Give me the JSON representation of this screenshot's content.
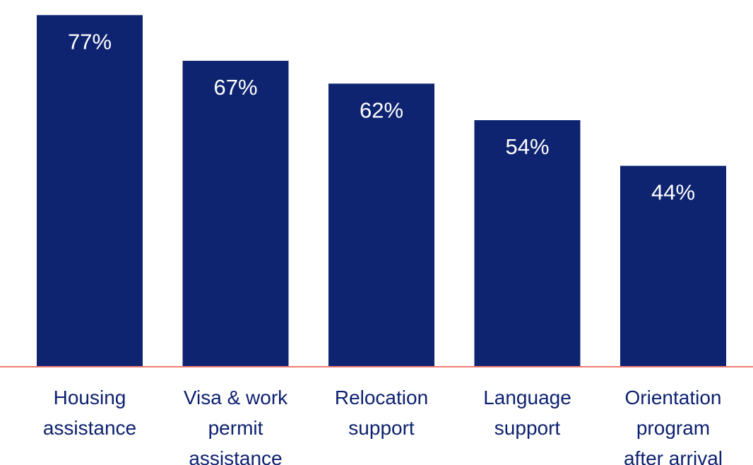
{
  "chart_data": {
    "type": "bar",
    "categories": [
      [
        "Housing",
        "assistance"
      ],
      [
        "Visa & work",
        "permit",
        "assistance"
      ],
      [
        "Relocation",
        "support"
      ],
      [
        "Language",
        "support"
      ],
      [
        "Orientation",
        "program",
        "after arrival"
      ]
    ],
    "values": [
      77,
      67,
      62,
      54,
      44
    ],
    "value_labels": [
      "77%",
      "67%",
      "62%",
      "54%",
      "44%"
    ],
    "ylim": [
      0,
      80
    ],
    "grid": false,
    "legend": "none",
    "colors": {
      "bar": "#0f2470",
      "baseline": "#f07b72",
      "text": "#0d2170",
      "value_text": "#ffffff"
    }
  }
}
